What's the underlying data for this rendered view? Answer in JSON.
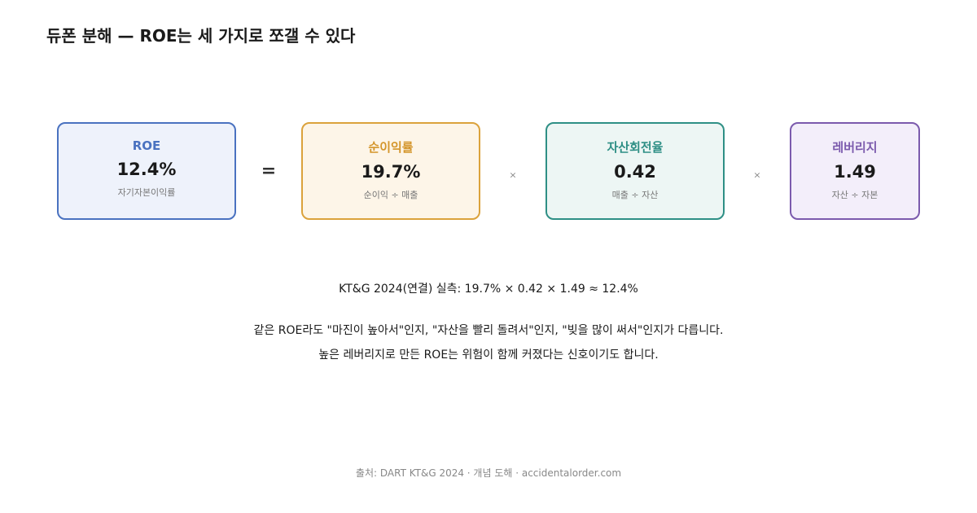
{
  "header": {
    "title": "듀폰 분해 — ROE는 세 가지로 쪼갤 수 있다"
  },
  "boxes": [
    {
      "label": "ROE",
      "value": "12.4%",
      "description": "자기자본이익률"
    },
    {
      "label": "순이익률",
      "value": "19.7%",
      "description": "순이익 ÷ 매출"
    },
    {
      "label": "자산회전율",
      "value": "0.42",
      "description": "매출 ÷ 자산"
    },
    {
      "label": "레버리지",
      "value": "1.49",
      "description": "자산 ÷ 자본"
    }
  ],
  "operators": [
    "=",
    "×",
    "×"
  ],
  "formula": "KT&G 2024(연결) 실측: 19.7% × 0.42 × 1.49 ≈ 12.4%",
  "notes": [
    "같은 ROE라도 \"마진이 높아서\"인지, \"자산을 빨리 돌려서\"인지, \"빚을 많이 써서\"인지가 다릅니다.",
    "높은 레버리지로 만든 ROE는 위험이 함께 커졌다는 신호이기도 합니다."
  ],
  "source": "출처: DART KT&G 2024 · 개념 도해 · accidentalorder.com"
}
